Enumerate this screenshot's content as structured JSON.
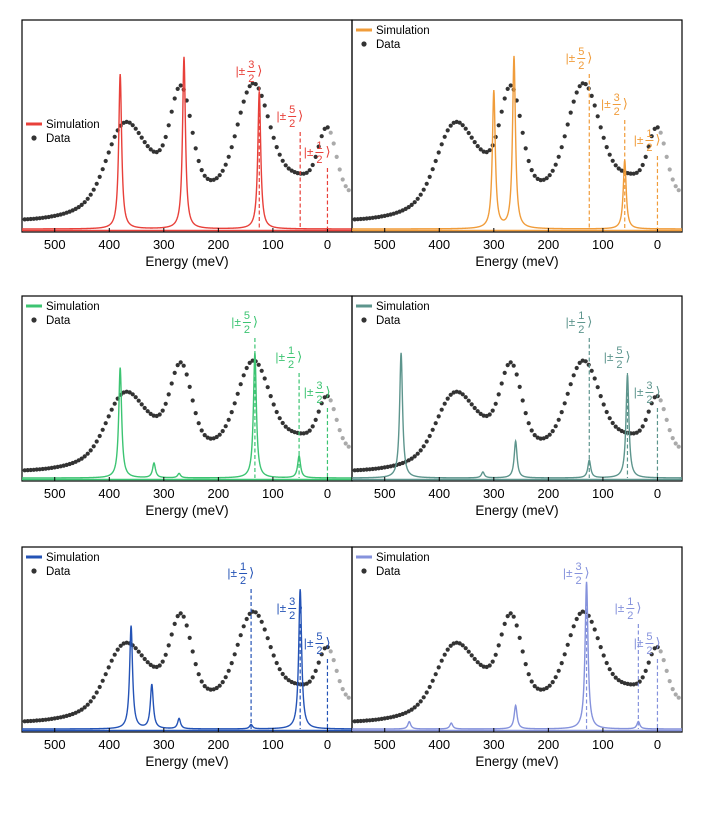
{
  "chart_data": [
    {
      "type": "line",
      "xlabel": "Energy (meV)",
      "x_ticks": [
        500,
        400,
        300,
        200,
        100,
        0
      ],
      "xlim": [
        560,
        -45
      ],
      "accent": "#e8403a",
      "legend": [
        "Simulation",
        "Data"
      ],
      "peaks": [
        [
          380,
          0.9
        ],
        [
          263,
          1.0
        ],
        [
          125,
          0.8
        ]
      ],
      "levels": [
        {
          "x": 125,
          "label": "|±",
          "num": "3"
        },
        {
          "x": 50,
          "label": "|±",
          "num": "5"
        },
        {
          "x": 0,
          "label": "|±",
          "num": "1"
        }
      ]
    },
    {
      "type": "line",
      "xlabel": "Energy (meV)",
      "x_ticks": [
        500,
        400,
        300,
        200,
        100,
        0
      ],
      "xlim": [
        560,
        -45
      ],
      "accent": "#f09c3a",
      "legend": [
        "Simulation",
        "Data"
      ],
      "peaks": [
        [
          300,
          0.8
        ],
        [
          263,
          1.0
        ],
        [
          60,
          0.4
        ]
      ],
      "levels": [
        {
          "x": 125,
          "label": "|±",
          "num": "5"
        },
        {
          "x": 60,
          "label": "|±",
          "num": "3"
        },
        {
          "x": 0,
          "label": "|±",
          "num": "1"
        }
      ]
    },
    {
      "type": "line",
      "xlabel": "Energy (meV)",
      "x_ticks": [
        500,
        400,
        300,
        200,
        100,
        0
      ],
      "xlim": [
        560,
        -45
      ],
      "accent": "#3cc472",
      "legend": [
        "Simulation",
        "Data"
      ],
      "peaks": [
        [
          380,
          0.75
        ],
        [
          318,
          0.1
        ],
        [
          272,
          0.03
        ],
        [
          133,
          0.85
        ],
        [
          52,
          0.15
        ]
      ],
      "levels": [
        {
          "x": 133,
          "label": "|±",
          "num": "5"
        },
        {
          "x": 52,
          "label": "|±",
          "num": "1"
        },
        {
          "x": 0,
          "label": "|±",
          "num": "3"
        }
      ]
    },
    {
      "type": "line",
      "xlabel": "Energy (meV)",
      "x_ticks": [
        500,
        400,
        300,
        200,
        100,
        0
      ],
      "xlim": [
        560,
        -45
      ],
      "accent": "#5d958d",
      "legend": [
        "Simulation",
        "Data"
      ],
      "peaks": [
        [
          470,
          0.85
        ],
        [
          320,
          0.04
        ],
        [
          260,
          0.25
        ],
        [
          125,
          0.12
        ],
        [
          55,
          0.7
        ]
      ],
      "levels": [
        {
          "x": 125,
          "label": "|±",
          "num": "1"
        },
        {
          "x": 55,
          "label": "|±",
          "num": "5"
        },
        {
          "x": 0,
          "label": "|±",
          "num": "3"
        }
      ]
    },
    {
      "type": "line",
      "xlabel": "Energy (meV)",
      "x_ticks": [
        500,
        400,
        300,
        200,
        100,
        0
      ],
      "xlim": [
        560,
        -45
      ],
      "accent": "#2453b6",
      "legend": [
        "Simulation",
        "Data"
      ],
      "peaks": [
        [
          360,
          0.7
        ],
        [
          322,
          0.3
        ],
        [
          272,
          0.07
        ],
        [
          140,
          0.03
        ],
        [
          50,
          0.95
        ]
      ],
      "levels": [
        {
          "x": 140,
          "label": "|±",
          "num": "1"
        },
        {
          "x": 50,
          "label": "|±",
          "num": "3"
        },
        {
          "x": 0,
          "label": "|±",
          "num": "5"
        }
      ]
    },
    {
      "type": "line",
      "xlabel": "Energy (meV)",
      "x_ticks": [
        500,
        400,
        300,
        200,
        100,
        0
      ],
      "xlim": [
        560,
        -45
      ],
      "accent": "#8592dc",
      "legend": [
        "Simulation",
        "Data"
      ],
      "peaks": [
        [
          455,
          0.05
        ],
        [
          378,
          0.04
        ],
        [
          260,
          0.16
        ],
        [
          130,
          1.0
        ],
        [
          35,
          0.05
        ]
      ],
      "levels": [
        {
          "x": 130,
          "label": "|±",
          "num": "3"
        },
        {
          "x": 35,
          "label": "|±",
          "num": "1"
        },
        {
          "x": 0,
          "label": "|±",
          "num": "5"
        }
      ]
    }
  ]
}
